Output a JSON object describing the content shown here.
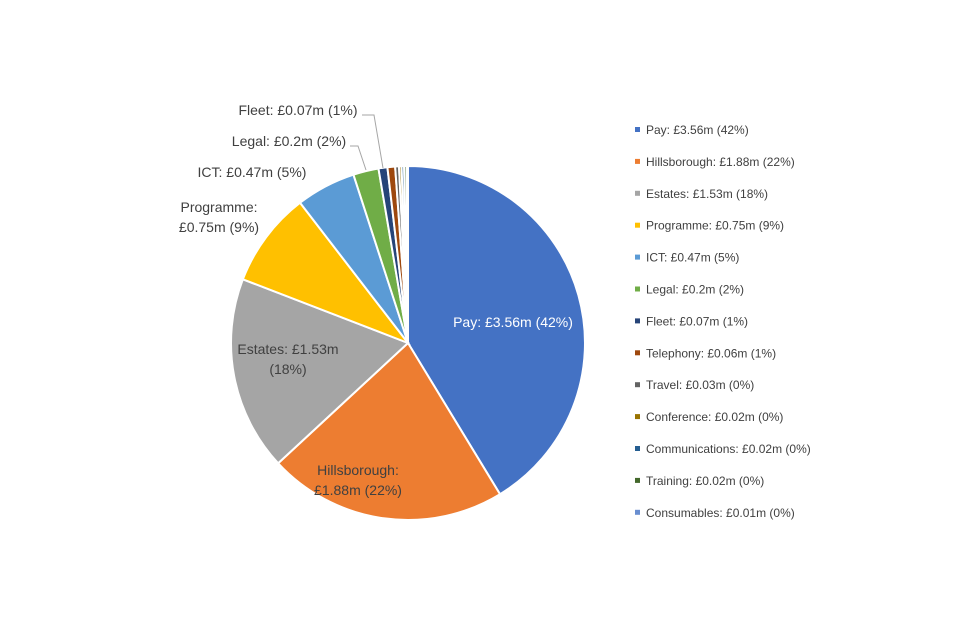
{
  "chart_data": {
    "type": "pie",
    "title": "",
    "legend_position": "right",
    "slices": [
      {
        "label": "Pay",
        "value": 3.56,
        "percent": 42,
        "color": "#4472C4",
        "legend": "Pay: £3.56m (42%)",
        "data_label": [
          "Pay: £3.56m (42%)"
        ]
      },
      {
        "label": "Hillsborough",
        "value": 1.88,
        "percent": 22,
        "color": "#ED7D31",
        "legend": "Hillsborough: £1.88m (22%)",
        "data_label": [
          "Hillsborough:",
          "£1.88m (22%)"
        ]
      },
      {
        "label": "Estates",
        "value": 1.53,
        "percent": 18,
        "color": "#A5A5A5",
        "legend": "Estates: £1.53m (18%)",
        "data_label": [
          "Estates: £1.53m",
          "(18%)"
        ]
      },
      {
        "label": "Programme",
        "value": 0.75,
        "percent": 9,
        "color": "#FFC000",
        "legend": "Programme: £0.75m (9%)",
        "data_label": [
          "Programme:",
          "£0.75m (9%)"
        ]
      },
      {
        "label": "ICT",
        "value": 0.47,
        "percent": 5,
        "color": "#5B9BD5",
        "legend": "ICT: £0.47m (5%)",
        "data_label": [
          "ICT: £0.47m (5%)"
        ]
      },
      {
        "label": "Legal",
        "value": 0.2,
        "percent": 2,
        "color": "#70AD47",
        "legend": "Legal: £0.2m (2%)",
        "data_label": [
          "Legal: £0.2m (2%)"
        ]
      },
      {
        "label": "Fleet",
        "value": 0.07,
        "percent": 1,
        "color": "#264478",
        "legend": "Fleet: £0.07m (1%)",
        "data_label": [
          "Fleet: £0.07m (1%)"
        ]
      },
      {
        "label": "Telephony",
        "value": 0.06,
        "percent": 1,
        "color": "#9E480E",
        "legend": "Telephony: £0.06m (1%)",
        "data_label": []
      },
      {
        "label": "Travel",
        "value": 0.03,
        "percent": 0,
        "color": "#636363",
        "legend": "Travel: £0.03m (0%)",
        "data_label": []
      },
      {
        "label": "Conference",
        "value": 0.02,
        "percent": 0,
        "color": "#997300",
        "legend": "Conference: £0.02m (0%)",
        "data_label": []
      },
      {
        "label": "Communications",
        "value": 0.02,
        "percent": 0,
        "color": "#255E91",
        "legend": "Communications: £0.02m (0%)",
        "data_label": []
      },
      {
        "label": "Training",
        "value": 0.02,
        "percent": 0,
        "color": "#43682B",
        "legend": "Training: £0.02m (0%)",
        "data_label": []
      },
      {
        "label": "Consumables",
        "value": 0.01,
        "percent": 0,
        "color": "#698ED0",
        "legend": "Consumables: £0.01m (0%)",
        "data_label": []
      }
    ]
  }
}
